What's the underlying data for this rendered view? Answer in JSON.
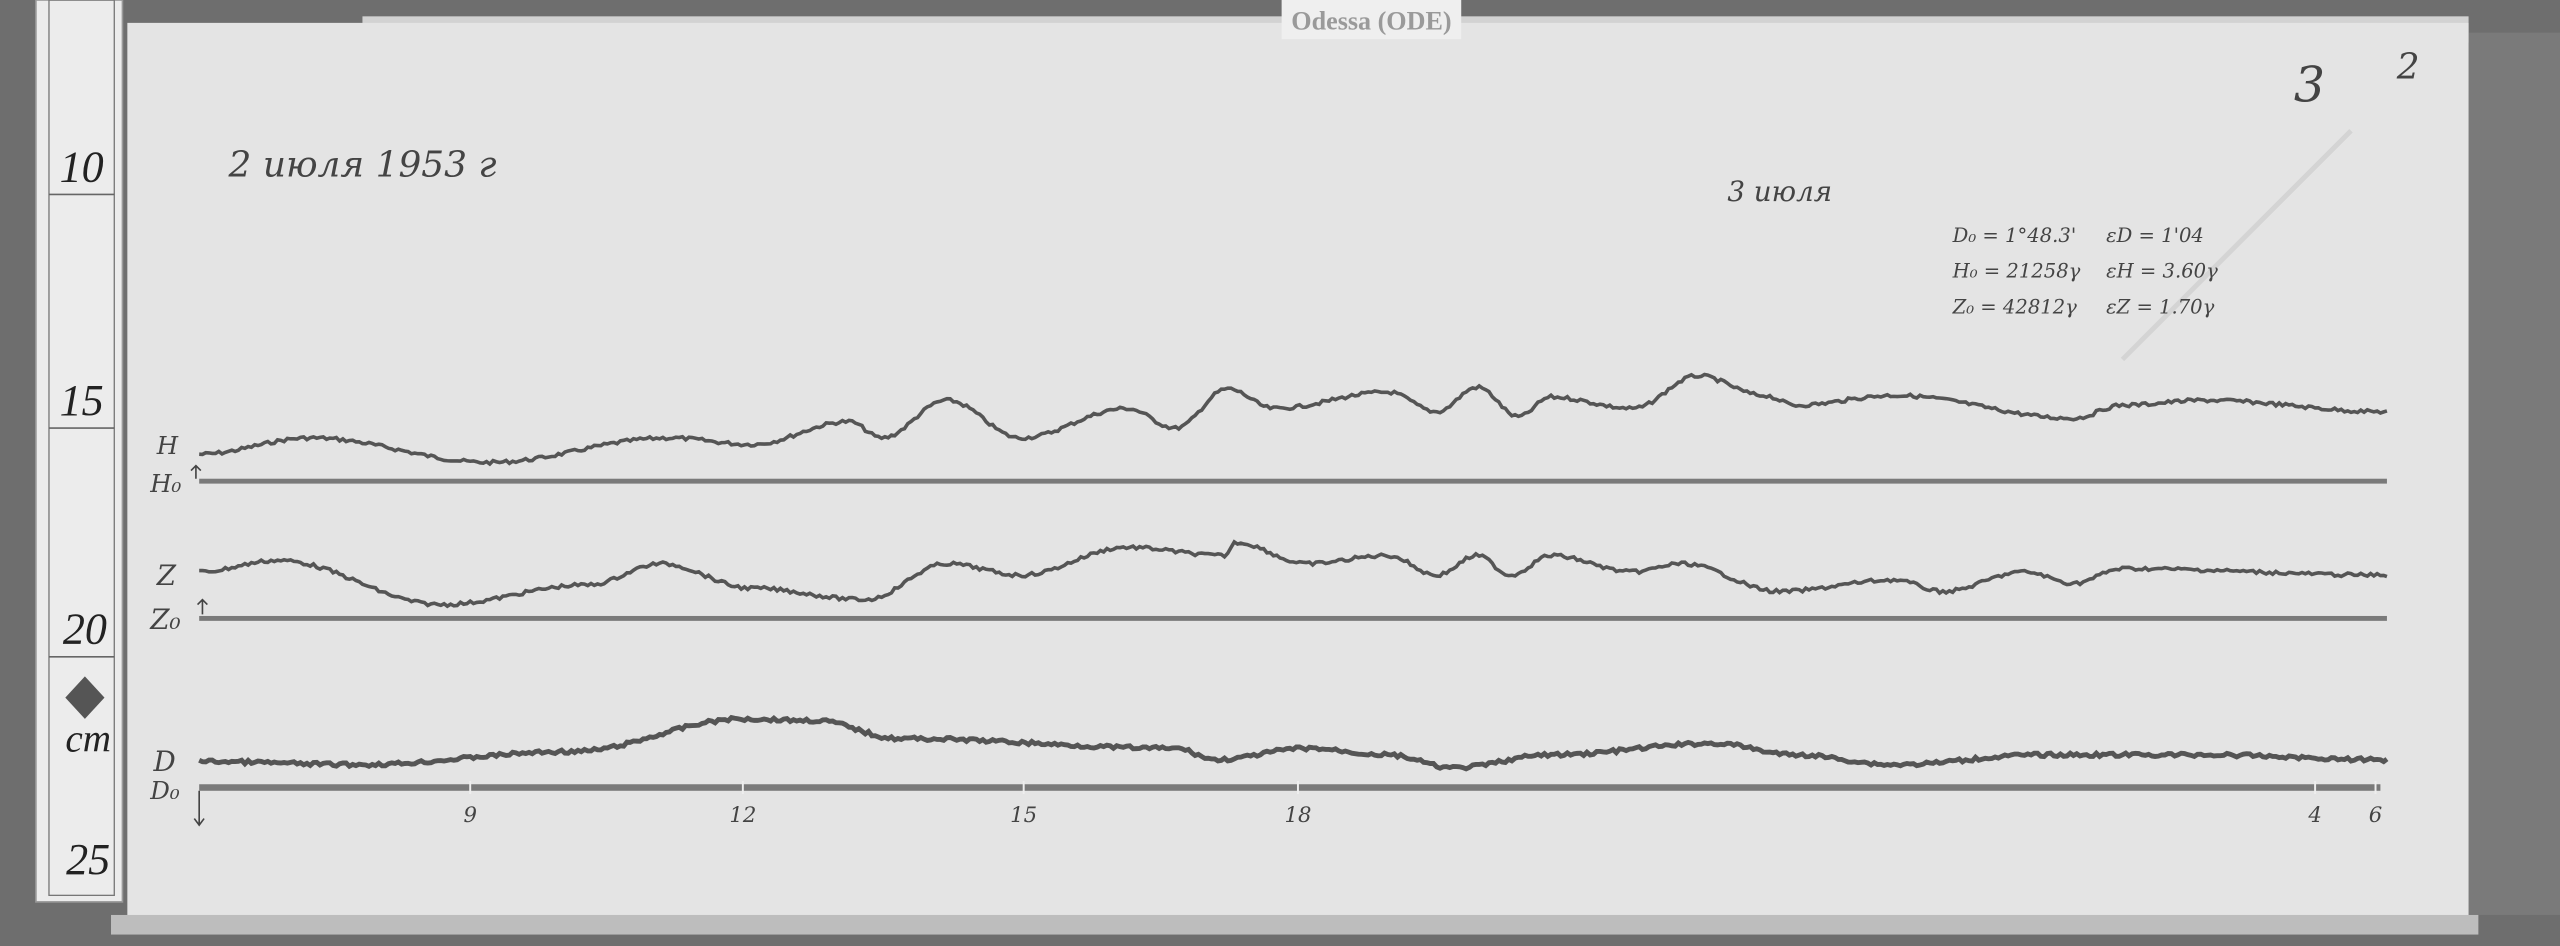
{
  "label_tag": "Odessa (ODE)",
  "date": "2 июля 1953 г",
  "next_day": "3 июля",
  "sheet_marks": [
    "3",
    "2"
  ],
  "ruler": {
    "marks": [
      "10",
      "15",
      "20",
      "25"
    ],
    "unit": "cm"
  },
  "parameters": {
    "D0": "D₀ = 1°48.3'",
    "H0": "H₀ = 21258γ",
    "Z0": "Z₀ = 42812γ",
    "eD": "εD = 1'04",
    "eH": "εH = 3.60γ",
    "eZ": "εZ = 1.70γ"
  },
  "trace_labels": {
    "H": "H",
    "H0": "H₀",
    "Z": "Z",
    "Z0": "Z₀",
    "D": "D",
    "D0": "D₀"
  },
  "hour_ticks": [
    "9",
    "12",
    "15",
    "18",
    "4",
    "6"
  ],
  "colors": {
    "paper": "#e4e4e4",
    "trace": "#555555",
    "wood": "#6e6e6e"
  }
}
